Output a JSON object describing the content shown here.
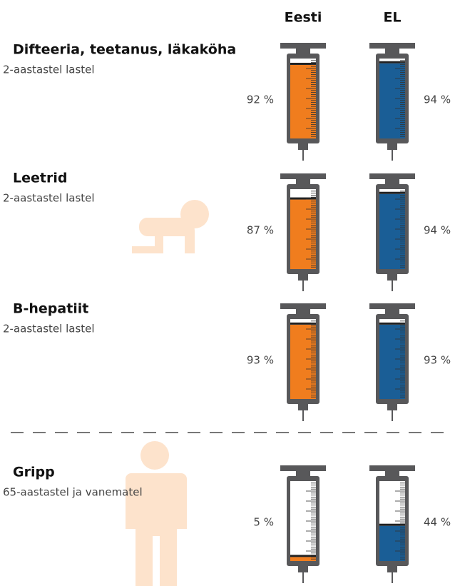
{
  "chart_data": {
    "type": "syringe",
    "categories": [
      "Difteeria, teetanus, läkaköha",
      "Leetrid",
      "B-hepatiit",
      "Gripp"
    ],
    "subtitles": [
      "2-aastastel lastel",
      "2-aastastel lastel",
      "2-aastastel lastel",
      "65-aastastel ja vanematel"
    ],
    "ylim": [
      0,
      100
    ],
    "series": [
      {
        "name": "Eesti",
        "color": "#f07d1e",
        "values": [
          92,
          87,
          93,
          5
        ],
        "value_labels": [
          "92 %",
          "87 %",
          "93 %",
          "5 %"
        ]
      },
      {
        "name": "EL",
        "color": "#1a5e96",
        "values": [
          94,
          94,
          93,
          44
        ],
        "value_labels": [
          "94 %",
          "94 %",
          "93 %",
          "44 %"
        ]
      }
    ]
  }
}
